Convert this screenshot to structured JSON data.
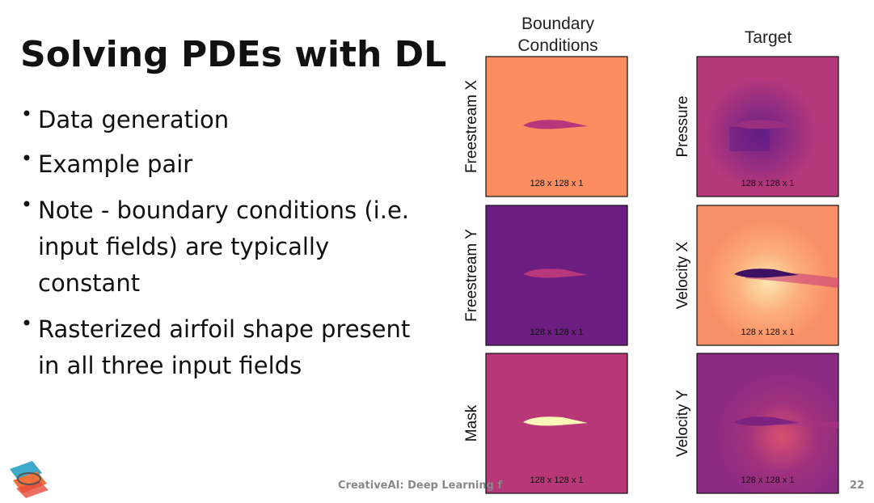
{
  "title": "Solving PDEs with DL",
  "bullets": [
    [
      "Data generation"
    ],
    [
      "Example pair"
    ],
    [
      "Note - boundary conditions (i.e.",
      "input fields) are typically",
      "constant"
    ],
    [
      "Rasterized airfoil shape present",
      "in all three input fields"
    ]
  ],
  "figure": {
    "column_headers": [
      [
        "Boundary",
        "Conditions"
      ],
      [
        "Target"
      ]
    ],
    "panels": [
      {
        "label": "Freestream X",
        "size": "128 x 128 x 1"
      },
      {
        "label": "Freestream Y",
        "size": "128 x 128 x 1"
      },
      {
        "label": "Mask",
        "size": "128 x 128 x 1"
      },
      {
        "label": "Pressure",
        "size": "128 x 128 x 1"
      },
      {
        "label": "Velocity X",
        "size": "128 x 128 x 1"
      },
      {
        "label": "Velocity Y",
        "size": "128 x 128 x 1"
      }
    ]
  },
  "footer": {
    "text": "CreativeAI: Deep Learning f",
    "page": "22"
  }
}
